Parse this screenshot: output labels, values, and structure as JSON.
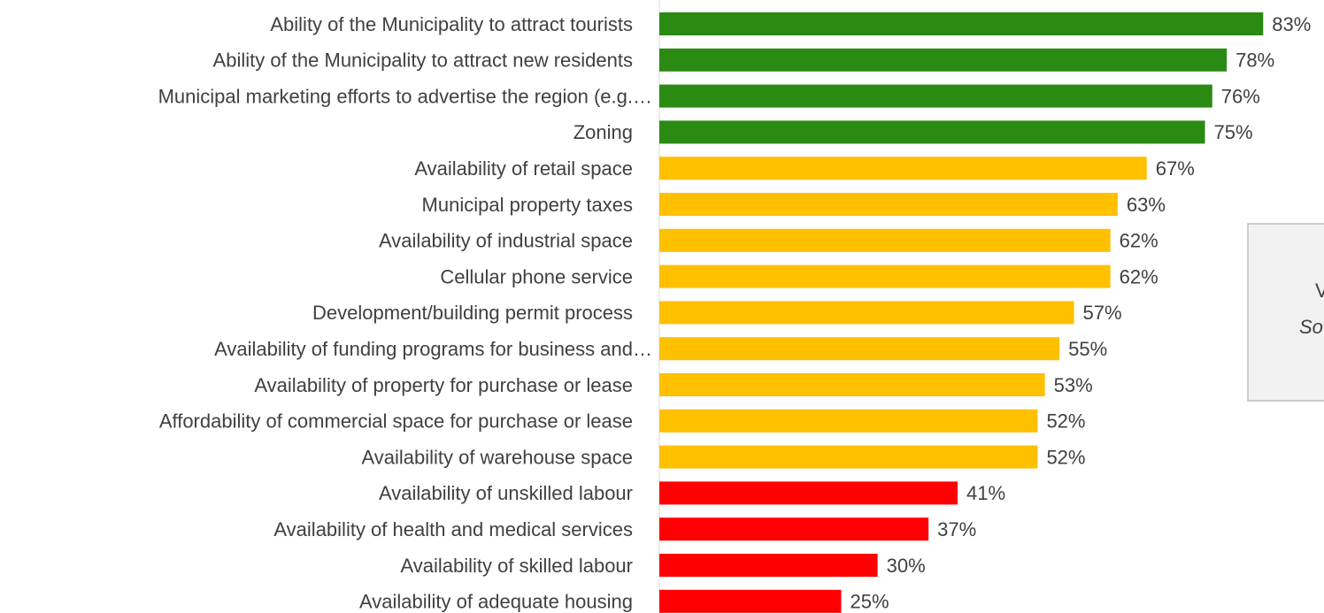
{
  "chart_data": {
    "type": "bar",
    "orientation": "horizontal",
    "categories": [
      "Ability of the Municipality to attract tourists",
      "Ability of the Municipality to attract new residents",
      "Municipal marketing efforts to advertise the region (e.g.…",
      "Zoning",
      "Availability of retail space",
      "Municipal property taxes",
      "Availability of industrial space",
      "Cellular phone service",
      "Development/building permit process",
      "Availability of funding programs for business and…",
      "Availability of property for purchase or lease",
      "Affordability of commercial space for purchase or lease",
      "Availability of warehouse space",
      "Availability of unskilled labour",
      "Availability of health and medical services",
      "Availability of skilled labour",
      "Availability of adequate housing"
    ],
    "values": [
      83,
      78,
      76,
      75,
      67,
      63,
      62,
      62,
      57,
      55,
      53,
      52,
      52,
      41,
      37,
      30,
      25
    ],
    "value_labels": [
      "83%",
      "78%",
      "76%",
      "75%",
      "67%",
      "63%",
      "62%",
      "62%",
      "57%",
      "55%",
      "53%",
      "52%",
      "52%",
      "41%",
      "37%",
      "30%",
      "25%"
    ],
    "colors": [
      "#2a8a12",
      "#2a8a12",
      "#2a8a12",
      "#2a8a12",
      "#ffc000",
      "#ffc000",
      "#ffc000",
      "#ffc000",
      "#ffc000",
      "#ffc000",
      "#ffc000",
      "#ffc000",
      "#ffc000",
      "#ff0000",
      "#ff0000",
      "#ff0000",
      "#ff0000"
    ],
    "xlim": [
      0,
      100
    ],
    "annotations": [
      "V",
      "So"
    ]
  }
}
